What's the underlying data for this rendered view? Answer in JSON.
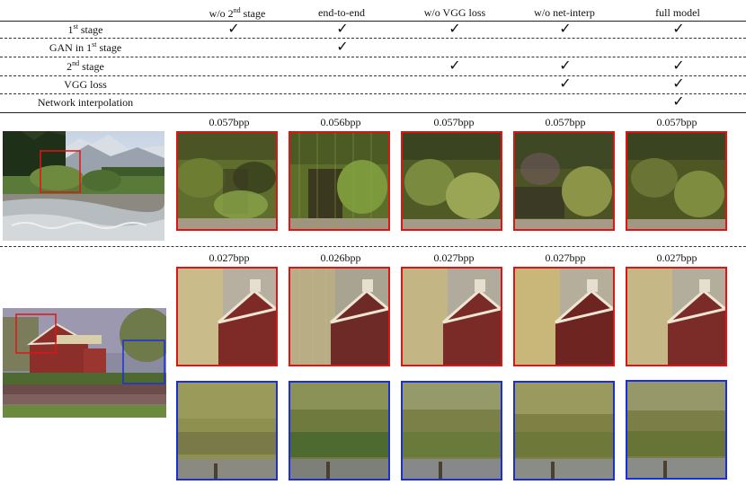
{
  "table": {
    "columns": [
      "w/o 2nd stage",
      "end-to-end",
      "w/o VGG loss",
      "w/o net-interp",
      "full model"
    ],
    "rows": [
      {
        "label": "1st stage",
        "checks": [
          true,
          true,
          true,
          true,
          true
        ]
      },
      {
        "label": "GAN in 1st stage",
        "checks": [
          false,
          true,
          false,
          false,
          false
        ]
      },
      {
        "label": "2nd stage",
        "checks": [
          false,
          false,
          true,
          true,
          true
        ]
      },
      {
        "label": "VGG loss",
        "checks": [
          false,
          false,
          false,
          true,
          true
        ]
      },
      {
        "label": "Network interpolation",
        "checks": [
          false,
          false,
          false,
          false,
          true
        ]
      }
    ],
    "check_glyph": "✓",
    "header_parts": {
      "c0_pre": "w/o 2",
      "c0_sup": "nd",
      "c0_post": " stage"
    },
    "row_parts": {
      "r0_pre": "1",
      "r0_sup": "st",
      "r0_post": " stage",
      "r1_pre": "GAN in 1",
      "r1_sup": "st",
      "r1_post": " stage",
      "r2_pre": "2",
      "r2_sup": "nd",
      "r2_post": "  stage"
    }
  },
  "figure": {
    "row1_bpp": [
      "0.057bpp",
      "0.056bpp",
      "0.057bpp",
      "0.057bpp",
      "0.057bpp"
    ],
    "row2_bpp": [
      "0.027bpp",
      "0.026bpp",
      "0.027bpp",
      "0.027bpp",
      "0.027bpp"
    ],
    "colors": {
      "red_box": "#e01414",
      "blue_box": "#1c2fd6"
    }
  }
}
